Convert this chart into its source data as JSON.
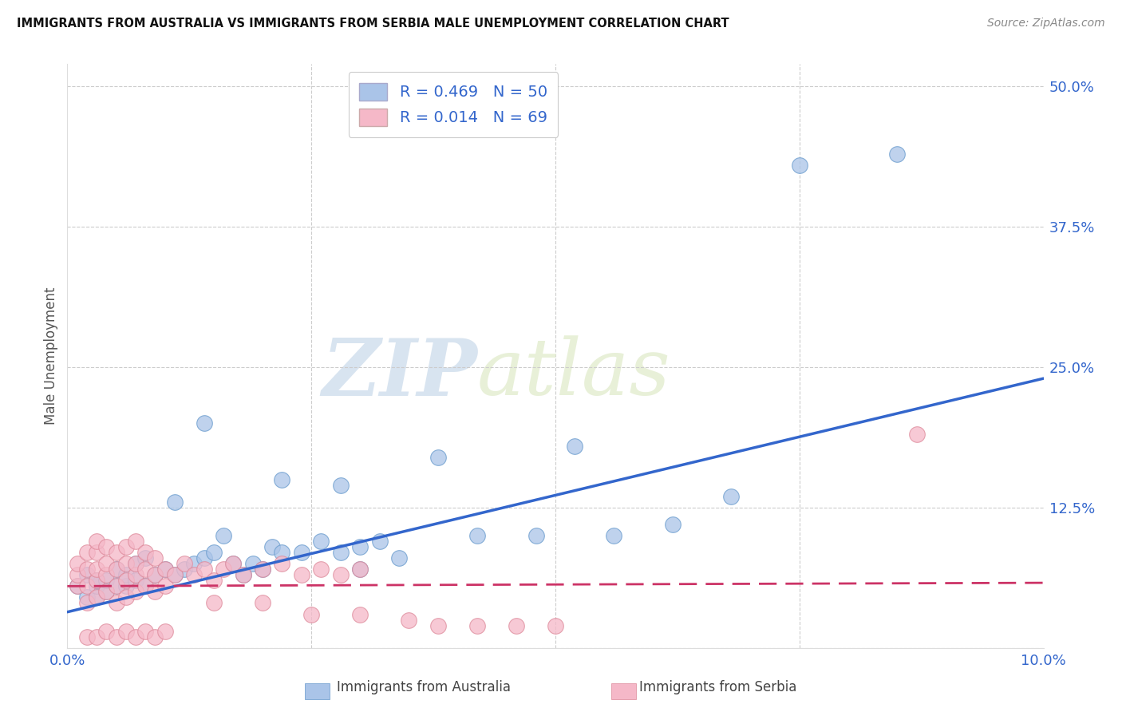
{
  "title": "IMMIGRANTS FROM AUSTRALIA VS IMMIGRANTS FROM SERBIA MALE UNEMPLOYMENT CORRELATION CHART",
  "source": "Source: ZipAtlas.com",
  "ylabel": "Male Unemployment",
  "xlim": [
    0.0,
    0.1
  ],
  "ylim": [
    0.0,
    0.52
  ],
  "yticks": [
    0.0,
    0.125,
    0.25,
    0.375,
    0.5
  ],
  "ytick_labels": [
    "",
    "12.5%",
    "25.0%",
    "37.5%",
    "50.0%"
  ],
  "background_color": "#ffffff",
  "watermark_zip": "ZIP",
  "watermark_atlas": "atlas",
  "australia_color": "#aac4e8",
  "australia_edge_color": "#6699cc",
  "serbia_color": "#f5b8c8",
  "serbia_edge_color": "#dd8899",
  "australia_line_color": "#3366cc",
  "serbia_line_color": "#cc3366",
  "legend_australia_R": "0.469",
  "legend_australia_N": "50",
  "legend_serbia_R": "0.014",
  "legend_serbia_N": "69",
  "australia_line_x0": 0.0,
  "australia_line_y0": 0.032,
  "australia_line_x1": 0.1,
  "australia_line_y1": 0.24,
  "serbia_line_x0": 0.0,
  "serbia_line_y0": 0.055,
  "serbia_line_x1": 0.1,
  "serbia_line_y1": 0.058,
  "australia_x": [
    0.001,
    0.002,
    0.002,
    0.003,
    0.003,
    0.003,
    0.004,
    0.004,
    0.005,
    0.005,
    0.006,
    0.006,
    0.007,
    0.007,
    0.008,
    0.008,
    0.009,
    0.01,
    0.011,
    0.011,
    0.012,
    0.013,
    0.014,
    0.015,
    0.016,
    0.017,
    0.018,
    0.019,
    0.02,
    0.021,
    0.022,
    0.024,
    0.026,
    0.028,
    0.03,
    0.03,
    0.032,
    0.034,
    0.014,
    0.022,
    0.028,
    0.038,
    0.042,
    0.048,
    0.052,
    0.056,
    0.062,
    0.068,
    0.075,
    0.085
  ],
  "australia_y": [
    0.055,
    0.045,
    0.065,
    0.045,
    0.055,
    0.06,
    0.05,
    0.06,
    0.055,
    0.07,
    0.055,
    0.065,
    0.06,
    0.075,
    0.055,
    0.08,
    0.065,
    0.07,
    0.065,
    0.13,
    0.07,
    0.075,
    0.08,
    0.085,
    0.1,
    0.075,
    0.065,
    0.075,
    0.07,
    0.09,
    0.085,
    0.085,
    0.095,
    0.085,
    0.07,
    0.09,
    0.095,
    0.08,
    0.2,
    0.15,
    0.145,
    0.17,
    0.1,
    0.1,
    0.18,
    0.1,
    0.11,
    0.135,
    0.43,
    0.44
  ],
  "serbia_x": [
    0.001,
    0.001,
    0.001,
    0.002,
    0.002,
    0.002,
    0.002,
    0.003,
    0.003,
    0.003,
    0.003,
    0.003,
    0.004,
    0.004,
    0.004,
    0.004,
    0.005,
    0.005,
    0.005,
    0.005,
    0.006,
    0.006,
    0.006,
    0.006,
    0.007,
    0.007,
    0.007,
    0.007,
    0.008,
    0.008,
    0.008,
    0.009,
    0.009,
    0.009,
    0.01,
    0.01,
    0.011,
    0.012,
    0.013,
    0.014,
    0.015,
    0.016,
    0.017,
    0.018,
    0.02,
    0.022,
    0.024,
    0.026,
    0.028,
    0.03,
    0.002,
    0.003,
    0.004,
    0.005,
    0.006,
    0.007,
    0.008,
    0.009,
    0.01,
    0.015,
    0.02,
    0.025,
    0.03,
    0.035,
    0.038,
    0.042,
    0.046,
    0.05,
    0.087
  ],
  "serbia_y": [
    0.055,
    0.065,
    0.075,
    0.04,
    0.055,
    0.07,
    0.085,
    0.045,
    0.06,
    0.07,
    0.085,
    0.095,
    0.05,
    0.065,
    0.075,
    0.09,
    0.04,
    0.055,
    0.07,
    0.085,
    0.045,
    0.06,
    0.075,
    0.09,
    0.05,
    0.065,
    0.075,
    0.095,
    0.055,
    0.07,
    0.085,
    0.05,
    0.065,
    0.08,
    0.055,
    0.07,
    0.065,
    0.075,
    0.065,
    0.07,
    0.06,
    0.07,
    0.075,
    0.065,
    0.07,
    0.075,
    0.065,
    0.07,
    0.065,
    0.07,
    0.01,
    0.01,
    0.015,
    0.01,
    0.015,
    0.01,
    0.015,
    0.01,
    0.015,
    0.04,
    0.04,
    0.03,
    0.03,
    0.025,
    0.02,
    0.02,
    0.02,
    0.02,
    0.19
  ]
}
